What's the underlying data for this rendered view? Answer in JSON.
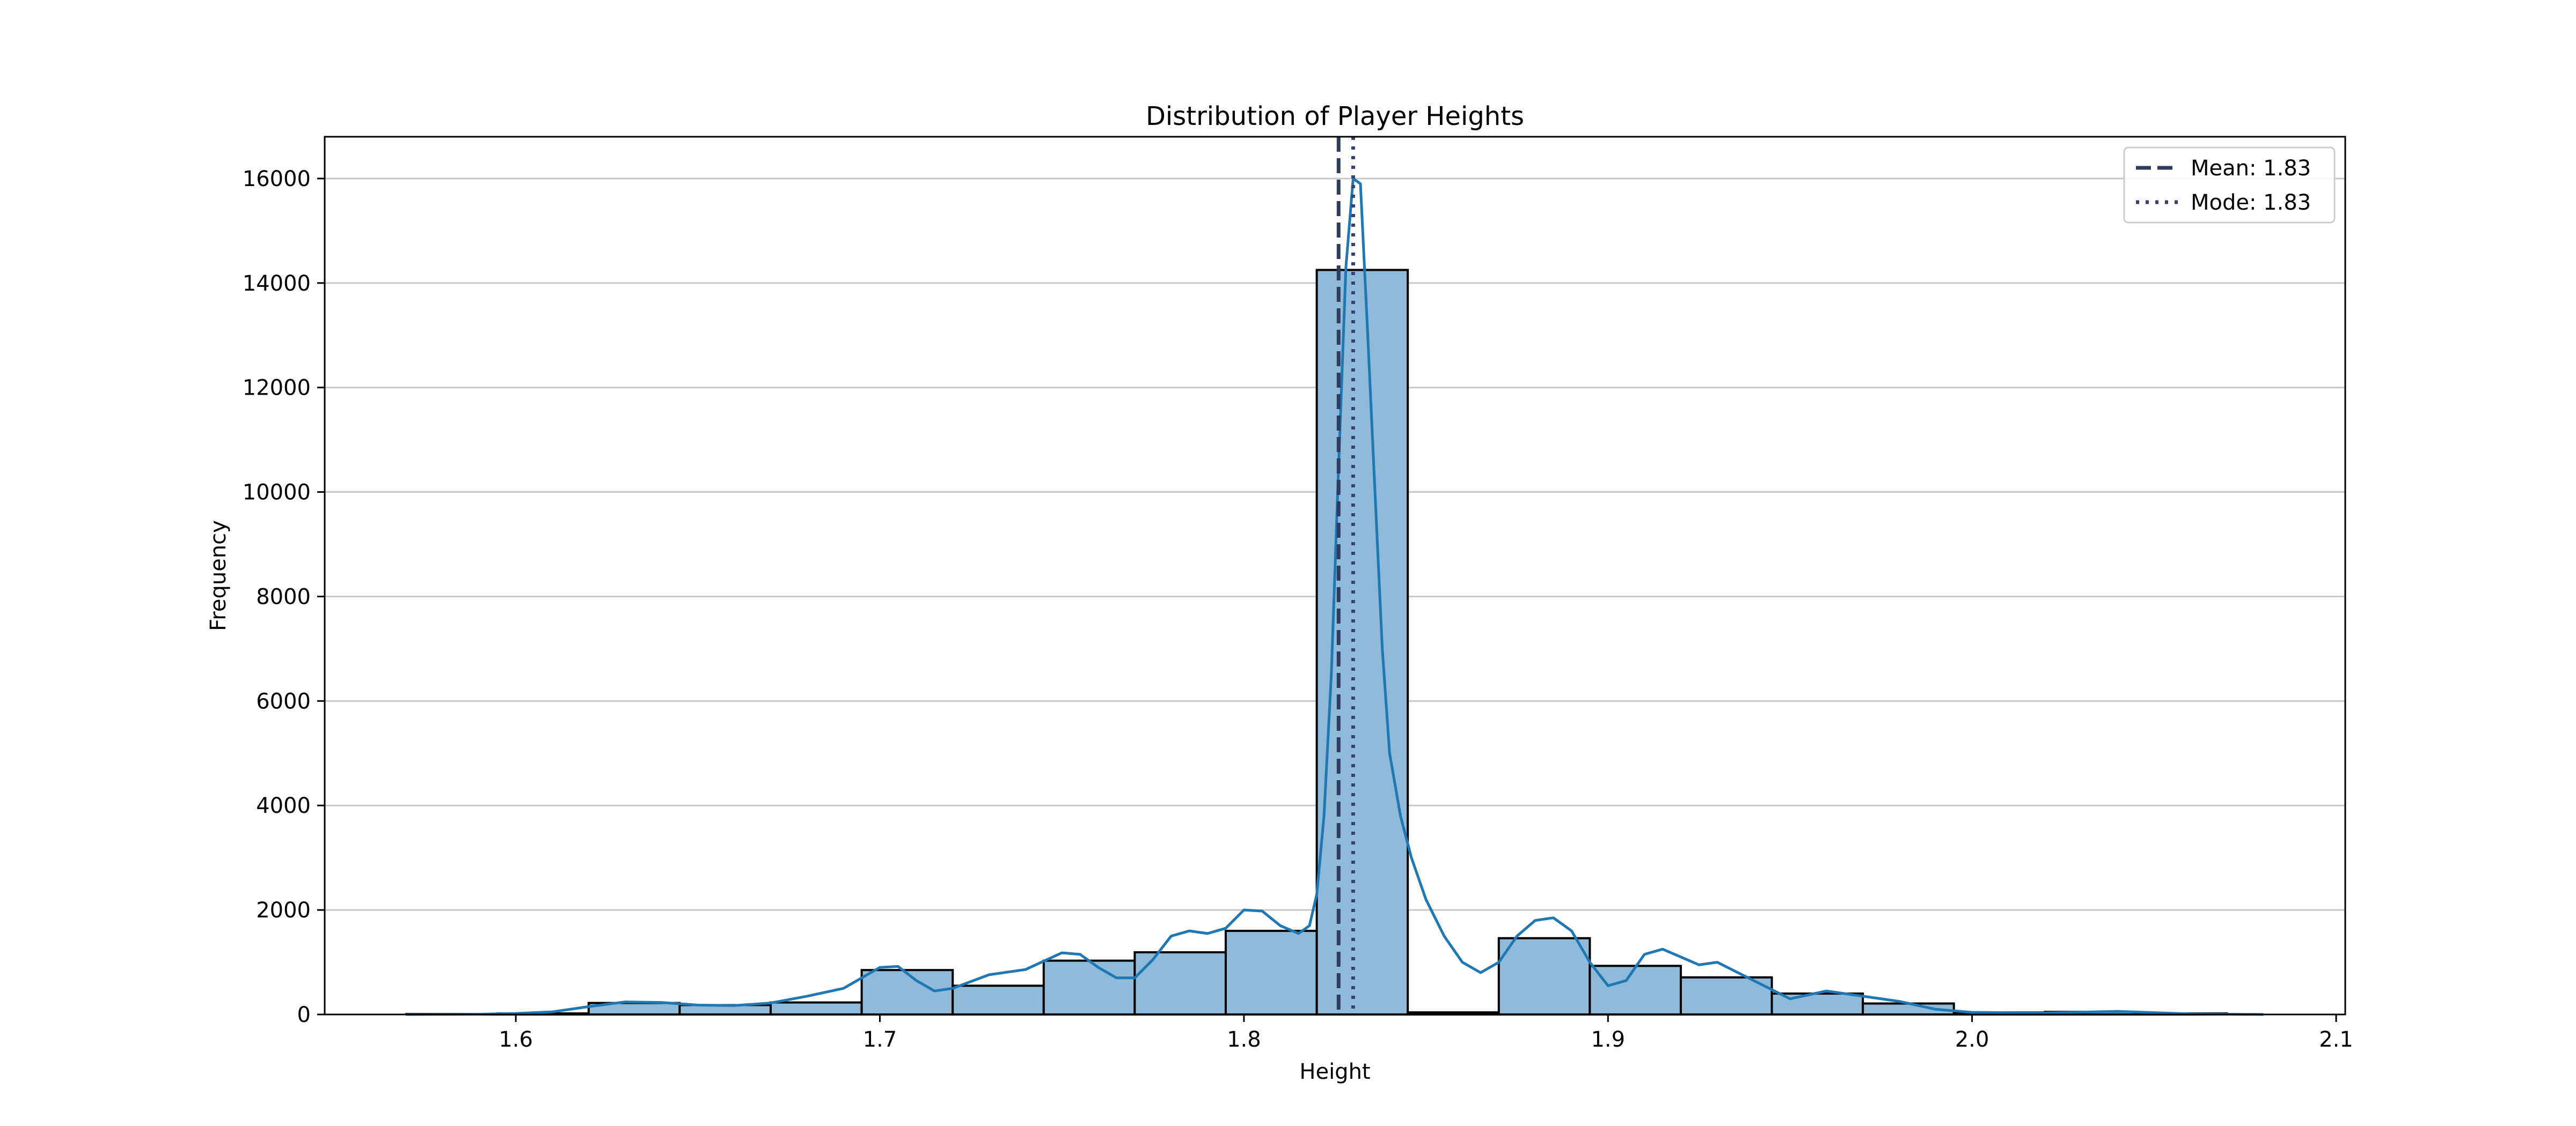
{
  "chart_data": {
    "type": "bar",
    "title": "Distribution of Player Heights",
    "xlabel": "Height",
    "ylabel": "Frequency",
    "xlim": [
      1.5475,
      2.1025
    ],
    "ylim": [
      0,
      16800
    ],
    "xticks": [
      1.6,
      1.7,
      1.8,
      1.9,
      2.0,
      2.1
    ],
    "yticks": [
      0,
      2000,
      4000,
      6000,
      8000,
      10000,
      12000,
      14000,
      16000
    ],
    "grid": "y",
    "legend_position": "top-right",
    "bins": {
      "edges": [
        1.57,
        1.595,
        1.62,
        1.645,
        1.67,
        1.695,
        1.72,
        1.745,
        1.77,
        1.795,
        1.82,
        1.845,
        1.87,
        1.895,
        1.92,
        1.945,
        1.97,
        1.995,
        2.02,
        2.045,
        2.07
      ],
      "counts": [
        10,
        20,
        220,
        180,
        230,
        850,
        550,
        1030,
        1190,
        1600,
        14250,
        40,
        1460,
        930,
        710,
        400,
        210,
        40,
        50,
        20
      ]
    },
    "kde": {
      "x": [
        1.57,
        1.59,
        1.6,
        1.61,
        1.62,
        1.63,
        1.64,
        1.65,
        1.66,
        1.67,
        1.68,
        1.69,
        1.7,
        1.705,
        1.71,
        1.715,
        1.72,
        1.73,
        1.74,
        1.75,
        1.755,
        1.76,
        1.765,
        1.77,
        1.775,
        1.78,
        1.785,
        1.79,
        1.795,
        1.8,
        1.805,
        1.81,
        1.815,
        1.818,
        1.82,
        1.822,
        1.824,
        1.826,
        1.828,
        1.83,
        1.832,
        1.834,
        1.836,
        1.838,
        1.84,
        1.843,
        1.846,
        1.85,
        1.855,
        1.86,
        1.865,
        1.87,
        1.875,
        1.88,
        1.885,
        1.89,
        1.895,
        1.9,
        1.905,
        1.91,
        1.915,
        1.92,
        1.925,
        1.93,
        1.94,
        1.95,
        1.96,
        1.97,
        1.98,
        1.99,
        2.0,
        2.02,
        2.04,
        2.06,
        2.08
      ],
      "y": [
        0,
        5,
        20,
        50,
        150,
        240,
        230,
        180,
        170,
        220,
        350,
        500,
        900,
        920,
        650,
        450,
        500,
        760,
        860,
        1180,
        1150,
        900,
        700,
        700,
        1050,
        1500,
        1600,
        1550,
        1650,
        2000,
        1980,
        1700,
        1550,
        1700,
        2300,
        3800,
        6500,
        10500,
        14300,
        16000,
        15900,
        13000,
        10000,
        7000,
        5000,
        3800,
        3000,
        2200,
        1500,
        1000,
        800,
        1000,
        1500,
        1800,
        1850,
        1600,
        1000,
        550,
        650,
        1150,
        1250,
        1100,
        950,
        1000,
        650,
        300,
        450,
        350,
        250,
        100,
        40,
        30,
        60,
        10,
        0
      ]
    },
    "series": [
      {
        "name": "Mean: 1.83",
        "value": 1.826,
        "style": "dashed",
        "color": "#2f3a5f"
      },
      {
        "name": "Mode: 1.83",
        "value": 1.83,
        "style": "dotted",
        "color": "#3b3f74"
      }
    ],
    "colors": {
      "bar_fill": "#8fbad9",
      "bar_edge": "#000000",
      "kde_line": "#1f77b4",
      "grid": "#c8c8c8"
    }
  }
}
